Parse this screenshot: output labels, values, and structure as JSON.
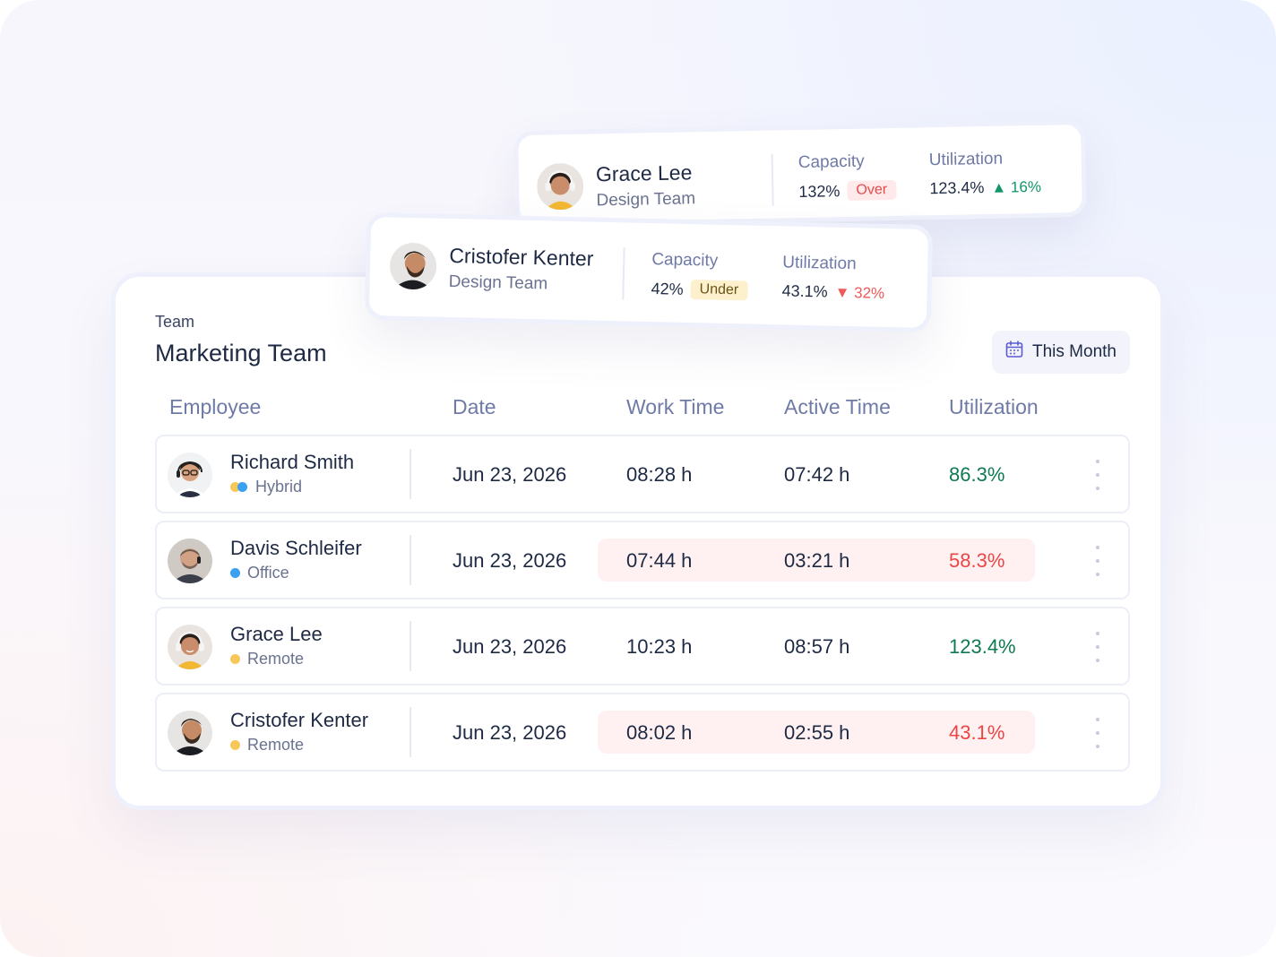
{
  "team": {
    "eyebrow": "Team",
    "title": "Marketing Team",
    "period_label": "This Month",
    "period_icon": "calendar-icon"
  },
  "table": {
    "headers": {
      "employee": "Employee",
      "date": "Date",
      "work_time": "Work Time",
      "active_time": "Active Time",
      "utilization": "Utilization"
    },
    "rows": [
      {
        "name": "Richard Smith",
        "mode": "Hybrid",
        "date": "Jun 23, 2026",
        "work": "08:28 h",
        "active": "07:42 h",
        "util": "86.3%",
        "status": "good",
        "highlighted": false
      },
      {
        "name": "Davis Schleifer",
        "mode": "Office",
        "date": "Jun 23, 2026",
        "work": "07:44 h",
        "active": "03:21 h",
        "util": "58.3%",
        "status": "bad",
        "highlighted": true
      },
      {
        "name": "Grace Lee",
        "mode": "Remote",
        "date": "Jun 23, 2026",
        "work": "10:23 h",
        "active": "08:57 h",
        "util": "123.4%",
        "status": "good",
        "highlighted": false
      },
      {
        "name": "Cristofer Kenter",
        "mode": "Remote",
        "date": "Jun 23, 2026",
        "work": "08:02 h",
        "active": "02:55 h",
        "util": "43.1%",
        "status": "bad",
        "highlighted": true
      }
    ]
  },
  "cards": {
    "grace": {
      "name": "Grace Lee",
      "team": "Design Team",
      "capacity_label": "Capacity",
      "capacity_value": "132%",
      "capacity_badge": "Over",
      "utilization_label": "Utilization",
      "utilization_value": "123.4%",
      "trend": "16%",
      "trend_direction": "up"
    },
    "cristofer": {
      "name": "Cristofer Kenter",
      "team": "Design Team",
      "capacity_label": "Capacity",
      "capacity_value": "42%",
      "capacity_badge": "Under",
      "utilization_label": "Utilization",
      "utilization_value": "43.1%",
      "trend": "32%",
      "trend_direction": "down"
    }
  },
  "colors": {
    "good": "#0f7a52",
    "bad": "#ea4646",
    "highlight_row": "#fff0f1",
    "office_dot": "#3aa0f0",
    "remote_dot": "#f7c75a",
    "hybrid_dot_a": "#f7c75a",
    "hybrid_dot_b": "#3aa0f0"
  }
}
